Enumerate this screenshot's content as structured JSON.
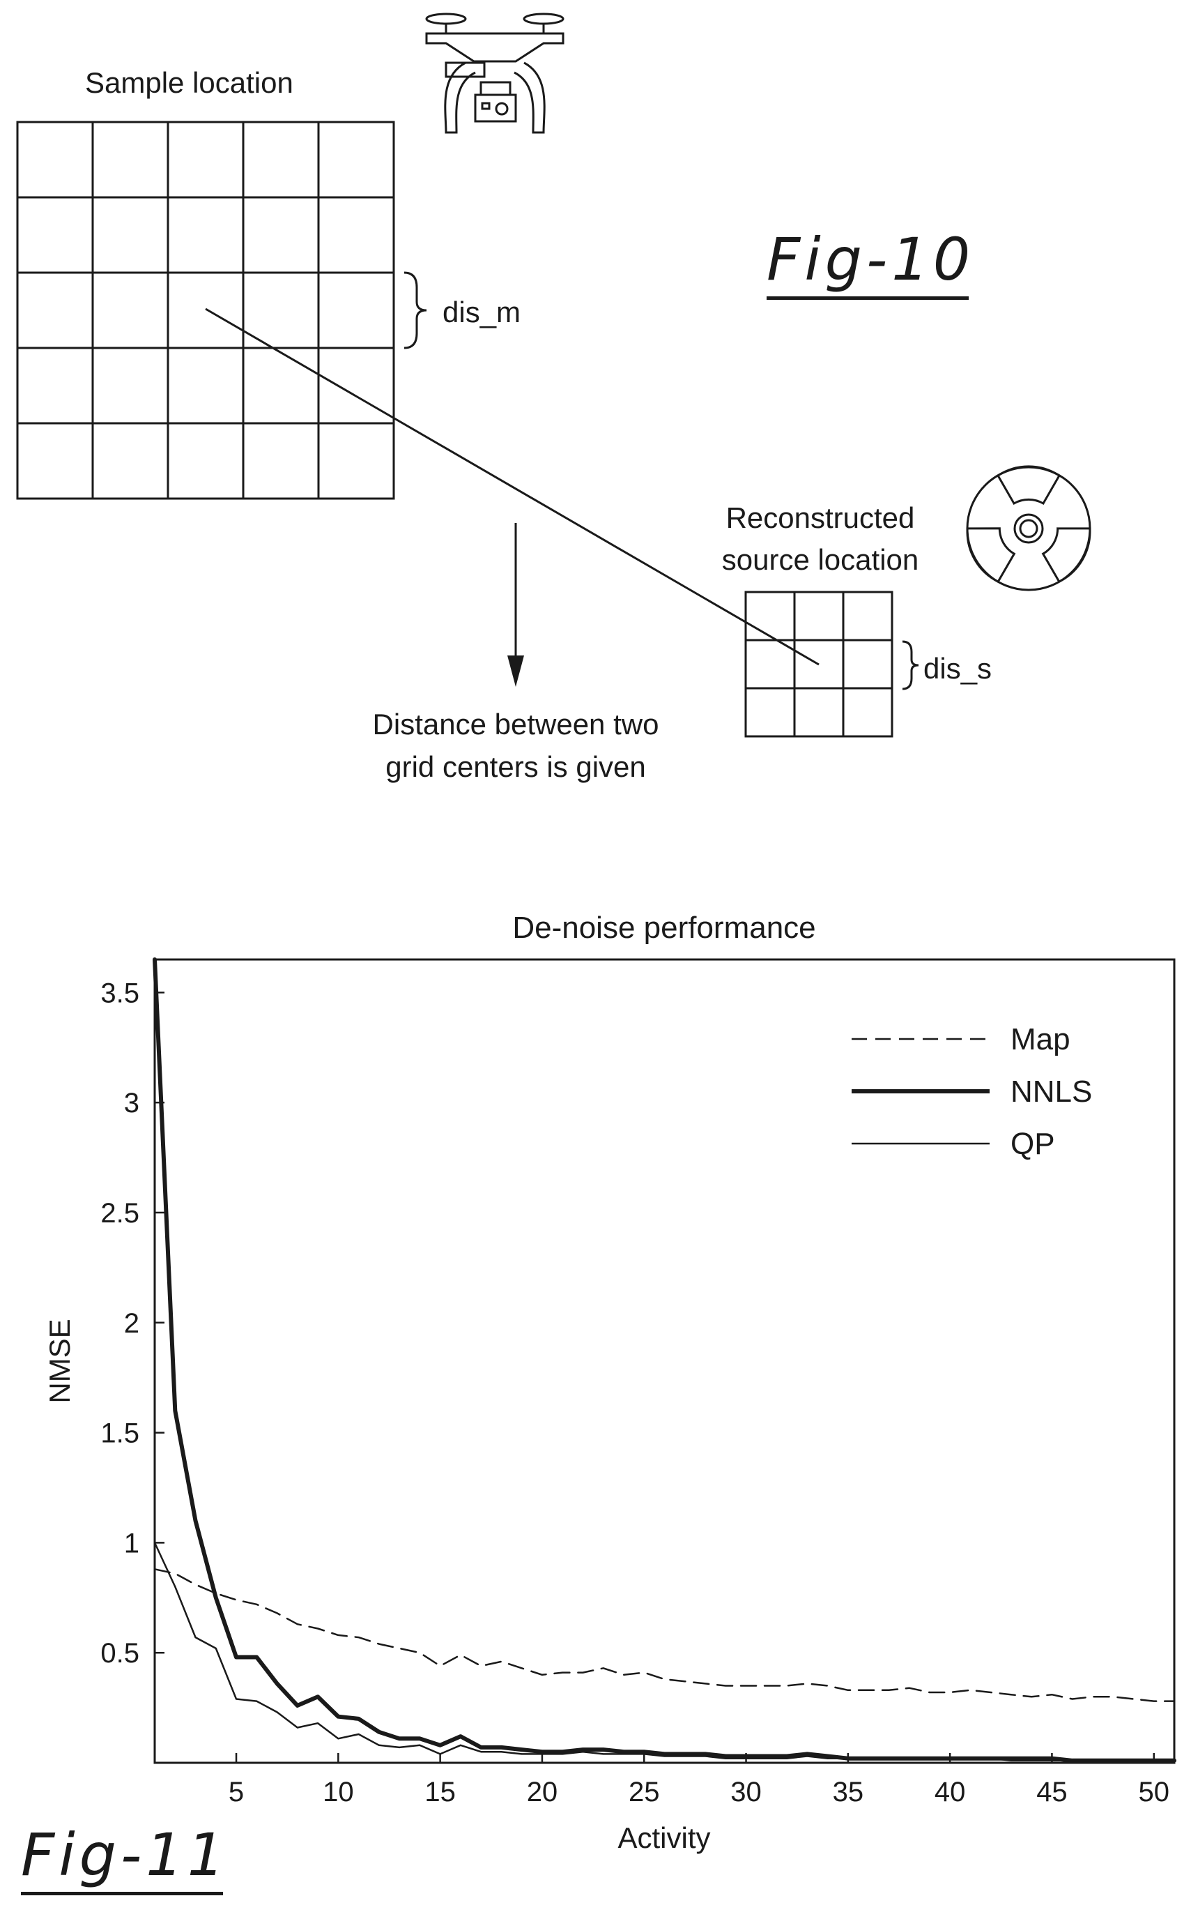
{
  "fig10": {
    "label": "Fig-10",
    "sample_label": "Sample location",
    "dis_m": "dis_m",
    "recon_label_line1": "Reconstructed",
    "recon_label_line2": "source location",
    "dis_s": "dis_s",
    "caption_line1": "Distance between two",
    "caption_line2": "grid centers is given",
    "icons": [
      "drone-icon",
      "radiation-icon"
    ]
  },
  "fig11": {
    "label": "Fig-11"
  },
  "chart_data": {
    "type": "line",
    "title": "De-noise performance",
    "xlabel": "Activity",
    "ylabel": "NMSE",
    "xlim": [
      1,
      51
    ],
    "ylim": [
      0,
      3.65
    ],
    "xticks": [
      5,
      10,
      15,
      20,
      25,
      30,
      35,
      40,
      45,
      50
    ],
    "yticks": [
      0.5,
      1,
      1.5,
      2,
      2.5,
      3,
      3.5
    ],
    "xtick_labels": [
      "5",
      "10",
      "15",
      "20",
      "25",
      "30",
      "35",
      "40",
      "45",
      "50"
    ],
    "ytick_labels": [
      "0.5",
      "1",
      "1.5",
      "2",
      "2.5",
      "3",
      "3.5"
    ],
    "legend_position": "top-right",
    "series": [
      {
        "name": "Map",
        "style": "dashed",
        "x": [
          1,
          2,
          3,
          4,
          5,
          6,
          7,
          8,
          9,
          10,
          11,
          12,
          13,
          14,
          15,
          16,
          17,
          18,
          19,
          20,
          21,
          22,
          23,
          24,
          25,
          26,
          27,
          28,
          29,
          30,
          31,
          32,
          33,
          34,
          35,
          36,
          37,
          38,
          39,
          40,
          41,
          42,
          43,
          44,
          45,
          46,
          47,
          48,
          49,
          50,
          51
        ],
        "y": [
          0.88,
          0.86,
          0.81,
          0.77,
          0.74,
          0.72,
          0.68,
          0.63,
          0.61,
          0.58,
          0.57,
          0.54,
          0.52,
          0.5,
          0.44,
          0.49,
          0.44,
          0.46,
          0.43,
          0.4,
          0.41,
          0.41,
          0.43,
          0.4,
          0.41,
          0.38,
          0.37,
          0.36,
          0.35,
          0.35,
          0.35,
          0.35,
          0.36,
          0.35,
          0.33,
          0.33,
          0.33,
          0.34,
          0.32,
          0.32,
          0.33,
          0.32,
          0.31,
          0.3,
          0.31,
          0.29,
          0.3,
          0.3,
          0.29,
          0.28,
          0.28
        ]
      },
      {
        "name": "NNLS",
        "style": "solid-thick",
        "x": [
          1,
          2,
          3,
          4,
          5,
          6,
          7,
          8,
          9,
          10,
          11,
          12,
          13,
          14,
          15,
          16,
          17,
          18,
          19,
          20,
          21,
          22,
          23,
          24,
          25,
          26,
          27,
          28,
          29,
          30,
          31,
          32,
          33,
          34,
          35,
          36,
          37,
          38,
          39,
          40,
          41,
          42,
          43,
          44,
          45,
          46,
          47,
          48,
          49,
          50,
          51
        ],
        "y": [
          3.65,
          1.6,
          1.1,
          0.75,
          0.48,
          0.48,
          0.36,
          0.26,
          0.3,
          0.21,
          0.2,
          0.14,
          0.11,
          0.11,
          0.08,
          0.12,
          0.07,
          0.07,
          0.06,
          0.05,
          0.05,
          0.06,
          0.06,
          0.05,
          0.05,
          0.04,
          0.04,
          0.04,
          0.03,
          0.03,
          0.03,
          0.03,
          0.04,
          0.03,
          0.02,
          0.02,
          0.02,
          0.02,
          0.02,
          0.02,
          0.02,
          0.02,
          0.02,
          0.02,
          0.02,
          0.01,
          0.01,
          0.01,
          0.01,
          0.01,
          0.01
        ]
      },
      {
        "name": "QP",
        "style": "solid-thin",
        "x": [
          1,
          2,
          3,
          4,
          5,
          6,
          7,
          8,
          9,
          10,
          11,
          12,
          13,
          14,
          15,
          16,
          17,
          18,
          19,
          20,
          21,
          22,
          23,
          24,
          25,
          26,
          27,
          28,
          29,
          30,
          31,
          32,
          33,
          34,
          35,
          36,
          37,
          38,
          39,
          40,
          41,
          42,
          43,
          44,
          45,
          46,
          47,
          48,
          49,
          50,
          51
        ],
        "y": [
          1.0,
          0.8,
          0.57,
          0.52,
          0.29,
          0.28,
          0.23,
          0.16,
          0.18,
          0.11,
          0.13,
          0.08,
          0.07,
          0.08,
          0.04,
          0.08,
          0.05,
          0.05,
          0.04,
          0.04,
          0.04,
          0.05,
          0.04,
          0.04,
          0.04,
          0.03,
          0.03,
          0.03,
          0.02,
          0.02,
          0.02,
          0.02,
          0.03,
          0.02,
          0.02,
          0.02,
          0.02,
          0.02,
          0.02,
          0.02,
          0.02,
          0.02,
          0.01,
          0.01,
          0.01,
          0.01,
          0.01,
          0.01,
          0.01,
          0.01,
          0.01
        ]
      }
    ]
  }
}
